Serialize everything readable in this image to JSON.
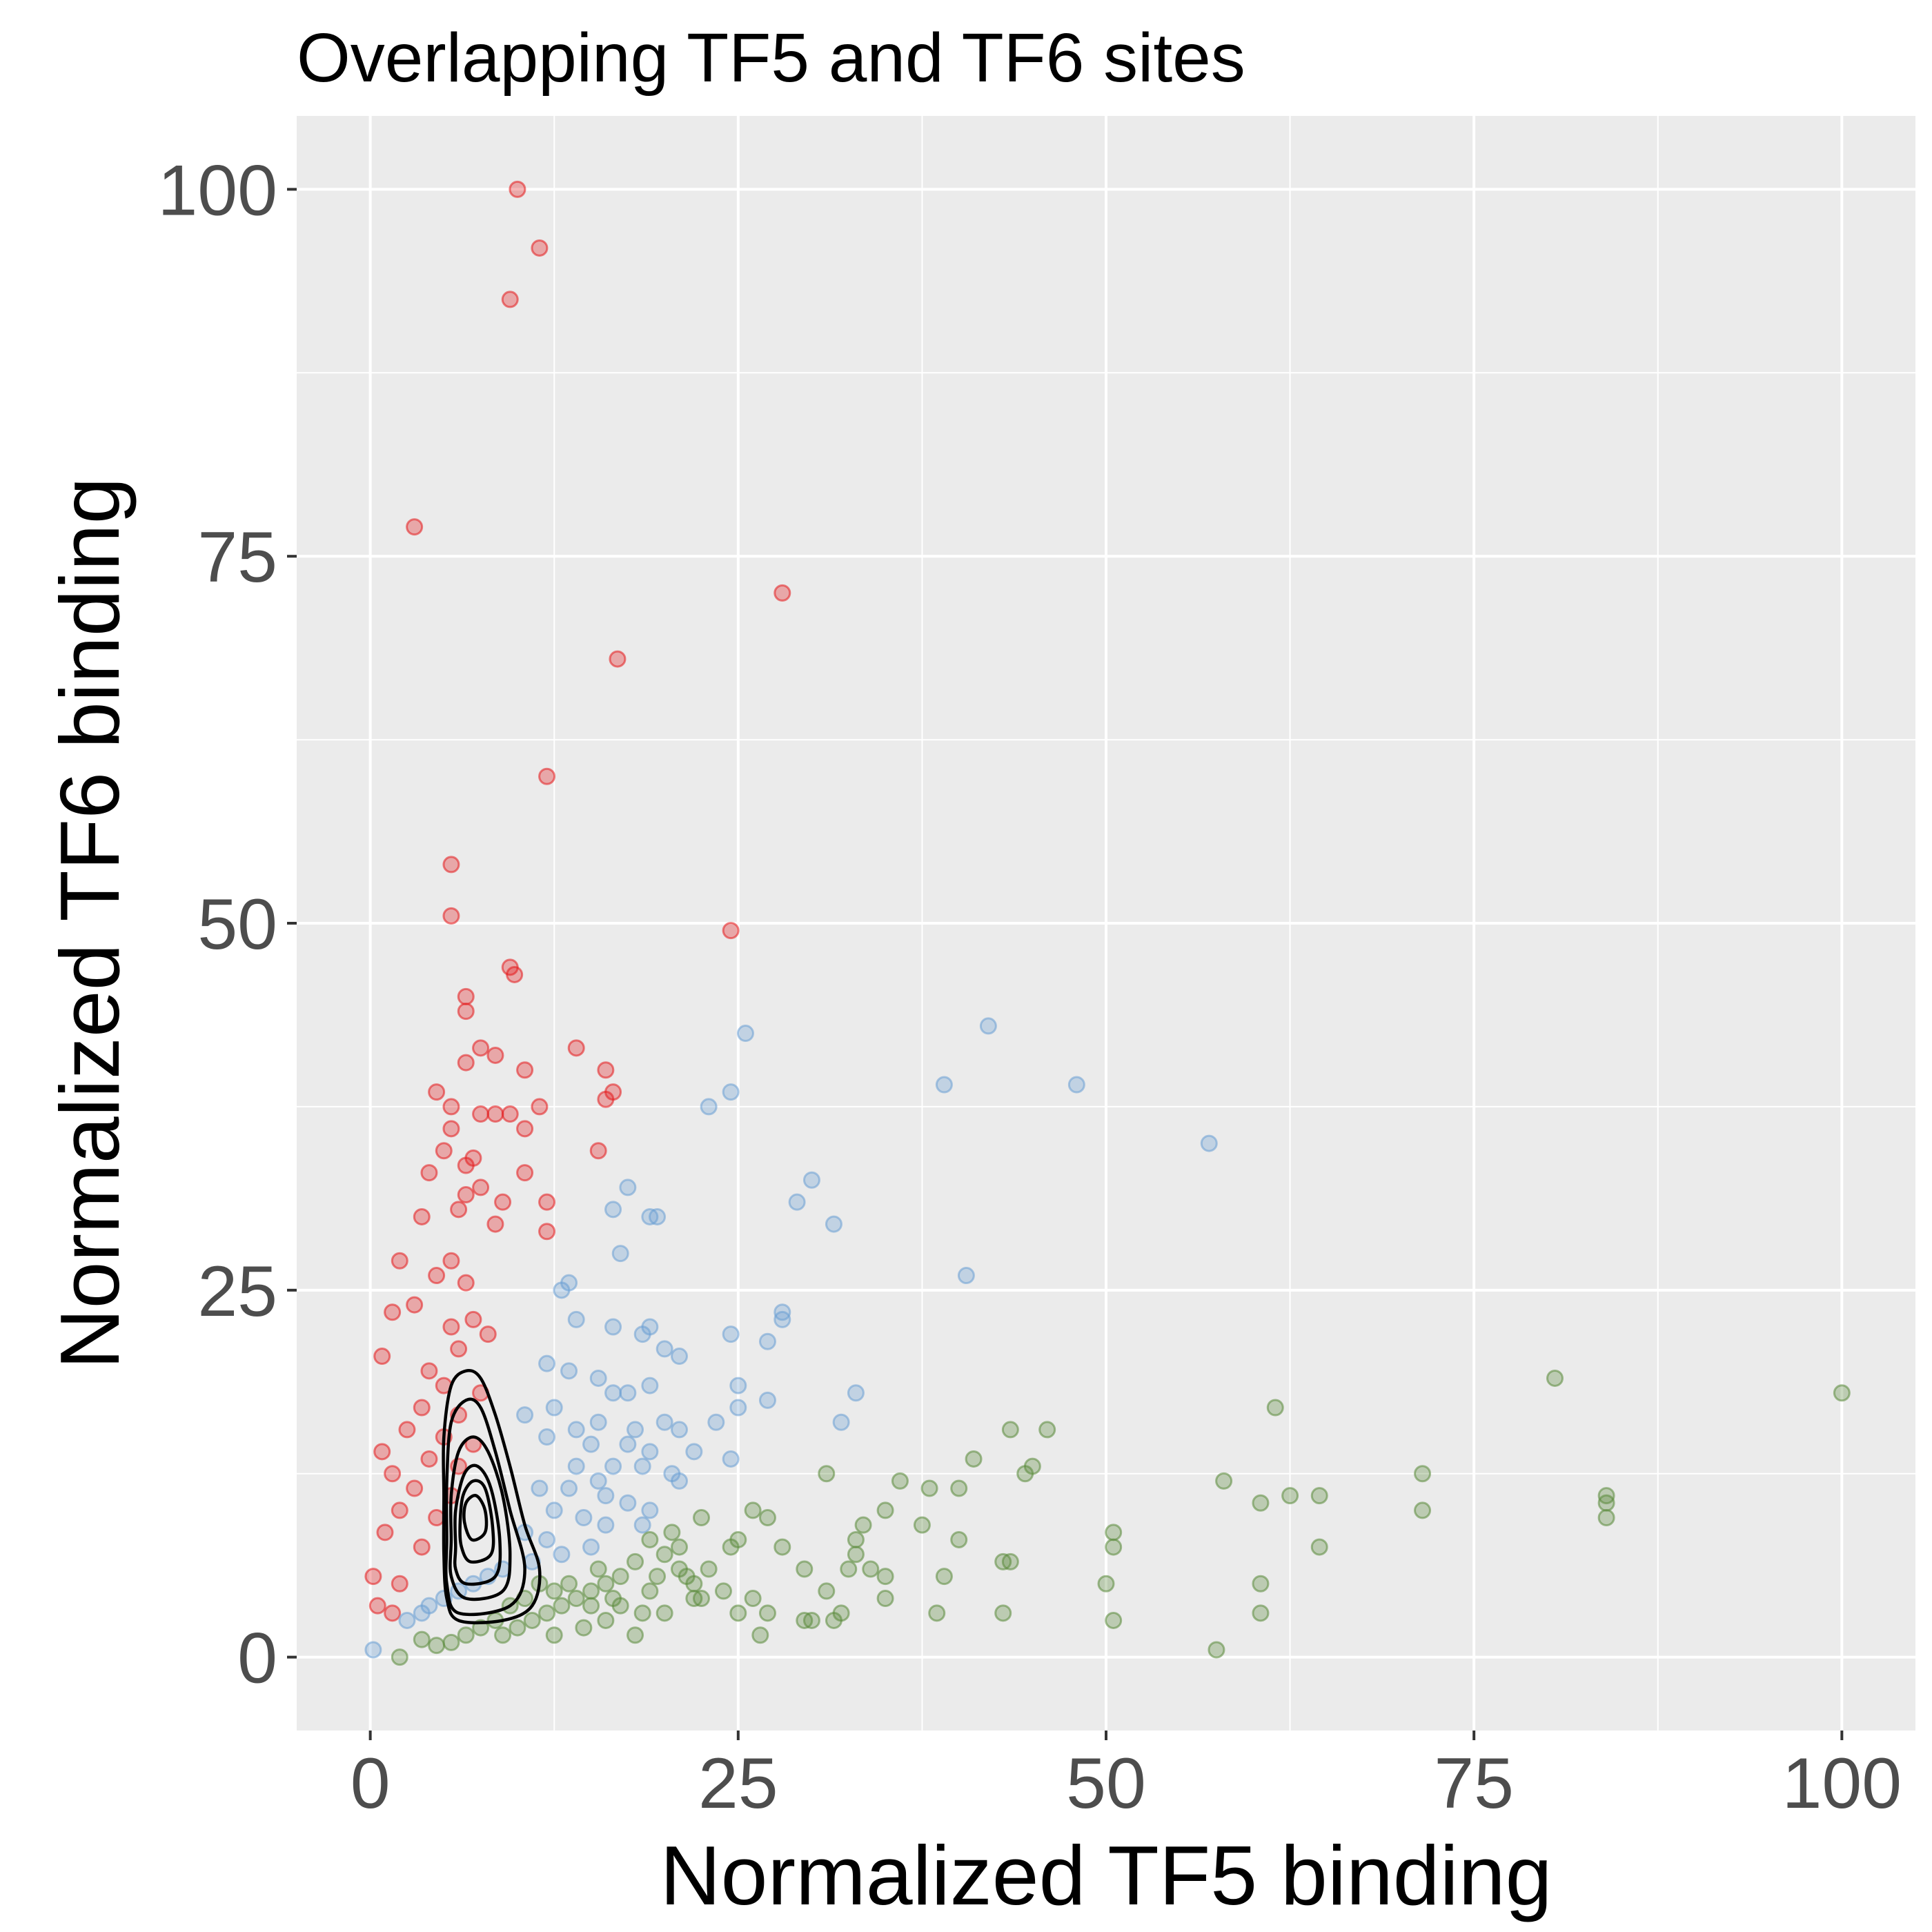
{
  "chart_data": {
    "type": "scatter",
    "title": "Overlapping TF5 and TF6 sites",
    "xlabel": "Normalized TF5 binding",
    "ylabel": "Normalized TF6 binding",
    "xlim": [
      -5,
      105
    ],
    "ylim": [
      -5,
      105
    ],
    "x_ticks": [
      "0",
      "25",
      "50",
      "75",
      "100"
    ],
    "y_ticks": [
      "0",
      "25",
      "50",
      "75",
      "100"
    ],
    "x_tick_values": [
      0,
      25,
      50,
      75,
      100
    ],
    "y_tick_values": [
      0,
      25,
      50,
      75,
      100
    ],
    "grid": true,
    "colors": {
      "panel": "#ebebeb",
      "grid": "#ffffff",
      "red": "#e41a1c",
      "blue": "#6a9fd4",
      "green": "#5a8a3a",
      "contour": "#000000"
    },
    "series": [
      {
        "color": "red",
        "points": [
          [
            10,
            100
          ],
          [
            11.5,
            96
          ],
          [
            9.5,
            92.5
          ],
          [
            3,
            77
          ],
          [
            28,
            72.5
          ],
          [
            16.8,
            68
          ],
          [
            12,
            60
          ],
          [
            5.5,
            54
          ],
          [
            5.5,
            50.5
          ],
          [
            24.5,
            49.5
          ],
          [
            9.5,
            47
          ],
          [
            9.8,
            46.5
          ],
          [
            6.5,
            45
          ],
          [
            6.5,
            44
          ],
          [
            14,
            41.5
          ],
          [
            7.5,
            41.5
          ],
          [
            8.5,
            41
          ],
          [
            6.5,
            40.5
          ],
          [
            10.5,
            40
          ],
          [
            16,
            40
          ],
          [
            16.5,
            38.5
          ],
          [
            4.5,
            38.5
          ],
          [
            16,
            38
          ],
          [
            11.5,
            37.5
          ],
          [
            5.5,
            37.5
          ],
          [
            8.5,
            37
          ],
          [
            9.5,
            37
          ],
          [
            7.5,
            37
          ],
          [
            10.5,
            36
          ],
          [
            5.5,
            36
          ],
          [
            15.5,
            34.5
          ],
          [
            5,
            34.5
          ],
          [
            7,
            34
          ],
          [
            6.5,
            33.5
          ],
          [
            4,
            33
          ],
          [
            10.5,
            33
          ],
          [
            7.5,
            32
          ],
          [
            6.5,
            31.5
          ],
          [
            12,
            31
          ],
          [
            9,
            31
          ],
          [
            6,
            30.5
          ],
          [
            3.5,
            30
          ],
          [
            8.5,
            29.5
          ],
          [
            12,
            29
          ],
          [
            2,
            27
          ],
          [
            5.5,
            27
          ],
          [
            4.5,
            26
          ],
          [
            6.5,
            25.5
          ],
          [
            3,
            24
          ],
          [
            1.5,
            23.5
          ],
          [
            7,
            23
          ],
          [
            5.5,
            22.5
          ],
          [
            8,
            22
          ],
          [
            6,
            21
          ],
          [
            0.8,
            20.5
          ],
          [
            4,
            19.5
          ],
          [
            5,
            18.5
          ],
          [
            7.5,
            18
          ],
          [
            3.5,
            17
          ],
          [
            6,
            16.5
          ],
          [
            2.5,
            15.5
          ],
          [
            5,
            15
          ],
          [
            7,
            14.5
          ],
          [
            0.8,
            14
          ],
          [
            4,
            13.5
          ],
          [
            6,
            13
          ],
          [
            1.5,
            12.5
          ],
          [
            3,
            11.5
          ],
          [
            5.5,
            11
          ],
          [
            2,
            10
          ],
          [
            4.5,
            9.5
          ],
          [
            1,
            8.5
          ],
          [
            3.5,
            7.5
          ],
          [
            0.2,
            5.5
          ],
          [
            2,
            5
          ],
          [
            0.5,
            3.5
          ],
          [
            1.5,
            3
          ]
        ]
      },
      {
        "color": "blue",
        "points": [
          [
            25.5,
            42.5
          ],
          [
            42,
            43
          ],
          [
            39,
            39
          ],
          [
            48,
            39
          ],
          [
            24.5,
            38.5
          ],
          [
            23,
            37.5
          ],
          [
            57,
            35
          ],
          [
            30,
            32.5
          ],
          [
            17.5,
            32
          ],
          [
            29,
            31
          ],
          [
            16.5,
            30.5
          ],
          [
            19,
            30
          ],
          [
            19.5,
            30
          ],
          [
            31.5,
            29.5
          ],
          [
            17,
            27.5
          ],
          [
            40.5,
            26
          ],
          [
            13.5,
            25.5
          ],
          [
            13,
            25
          ],
          [
            14,
            23
          ],
          [
            16.5,
            22.5
          ],
          [
            19,
            22.5
          ],
          [
            28,
            23.5
          ],
          [
            28,
            23
          ],
          [
            18.5,
            22
          ],
          [
            24.5,
            22
          ],
          [
            27,
            21.5
          ],
          [
            20,
            21
          ],
          [
            21,
            20.5
          ],
          [
            12,
            20
          ],
          [
            13.5,
            19.5
          ],
          [
            15.5,
            19
          ],
          [
            19,
            18.5
          ],
          [
            25,
            18.5
          ],
          [
            16.5,
            18
          ],
          [
            17.5,
            18
          ],
          [
            27,
            17.5
          ],
          [
            33,
            18
          ],
          [
            12.5,
            17
          ],
          [
            10.5,
            16.5
          ],
          [
            25,
            17
          ],
          [
            15.5,
            16
          ],
          [
            20,
            16
          ],
          [
            23.5,
            16
          ],
          [
            14,
            15.5
          ],
          [
            18,
            15.5
          ],
          [
            21,
            15.5
          ],
          [
            32,
            16
          ],
          [
            12,
            15
          ],
          [
            15,
            14.5
          ],
          [
            17.5,
            14.5
          ],
          [
            19,
            14
          ],
          [
            22,
            14
          ],
          [
            24.5,
            13.5
          ],
          [
            14,
            13
          ],
          [
            16.5,
            13
          ],
          [
            18.5,
            13
          ],
          [
            20.5,
            12.5
          ],
          [
            15.5,
            12
          ],
          [
            21,
            12
          ],
          [
            11.5,
            11.5
          ],
          [
            13.5,
            11.5
          ],
          [
            16,
            11
          ],
          [
            17.5,
            10.5
          ],
          [
            19,
            10
          ],
          [
            12.5,
            10
          ],
          [
            14.5,
            9.5
          ],
          [
            16,
            9
          ],
          [
            18.5,
            9
          ],
          [
            10.5,
            8.5
          ],
          [
            12,
            8
          ],
          [
            15,
            7.5
          ],
          [
            13,
            7
          ],
          [
            11,
            6.5
          ],
          [
            9,
            6
          ],
          [
            8,
            5.5
          ],
          [
            7,
            5
          ],
          [
            6,
            4.5
          ],
          [
            5,
            4
          ],
          [
            4,
            3.5
          ],
          [
            3.5,
            3
          ],
          [
            2.5,
            2.5
          ],
          [
            0.2,
            0.5
          ]
        ]
      },
      {
        "color": "green",
        "points": [
          [
            80.5,
            19
          ],
          [
            100,
            18
          ],
          [
            61.5,
            17
          ],
          [
            46,
            15.5
          ],
          [
            43.5,
            15.5
          ],
          [
            41,
            13.5
          ],
          [
            31,
            12.5
          ],
          [
            45,
            13
          ],
          [
            44.5,
            12.5
          ],
          [
            71.5,
            12.5
          ],
          [
            58,
            12
          ],
          [
            36,
            12
          ],
          [
            38,
            11.5
          ],
          [
            40,
            11.5
          ],
          [
            62.5,
            11
          ],
          [
            64.5,
            11
          ],
          [
            84,
            11
          ],
          [
            84,
            10.5
          ],
          [
            60.5,
            10.5
          ],
          [
            35,
            10
          ],
          [
            26,
            10
          ],
          [
            71.5,
            10
          ],
          [
            84,
            9.5
          ],
          [
            27,
            9.5
          ],
          [
            22.5,
            9.5
          ],
          [
            33.5,
            9
          ],
          [
            37.5,
            9
          ],
          [
            50.5,
            8.5
          ],
          [
            50.5,
            7.5
          ],
          [
            33,
            8
          ],
          [
            40,
            8
          ],
          [
            25,
            8
          ],
          [
            24.5,
            7.5
          ],
          [
            28,
            7.5
          ],
          [
            64.5,
            7.5
          ],
          [
            33,
            7
          ],
          [
            43.5,
            6.5
          ],
          [
            43,
            6.5
          ],
          [
            29.5,
            6
          ],
          [
            32.5,
            6
          ],
          [
            34,
            6
          ],
          [
            39,
            5.5
          ],
          [
            35,
            5.5
          ],
          [
            50,
            5
          ],
          [
            60.5,
            5
          ],
          [
            24,
            4.5
          ],
          [
            22.5,
            4
          ],
          [
            26,
            4
          ],
          [
            31,
            4.5
          ],
          [
            35,
            4
          ],
          [
            60.5,
            3
          ],
          [
            25,
            3
          ],
          [
            27,
            3
          ],
          [
            32,
            3
          ],
          [
            38.5,
            3
          ],
          [
            43,
            3
          ],
          [
            50.5,
            2.5
          ],
          [
            30,
            2.5
          ],
          [
            29.5,
            2.5
          ],
          [
            31.5,
            2.5
          ],
          [
            26.5,
            1.5
          ],
          [
            57.5,
            0.5
          ],
          [
            22,
            5
          ],
          [
            21,
            6
          ],
          [
            20,
            7
          ],
          [
            19,
            8
          ],
          [
            18,
            6.5
          ],
          [
            17,
            5.5
          ],
          [
            16,
            5
          ],
          [
            15,
            4.5
          ],
          [
            14,
            4
          ],
          [
            13,
            3.5
          ],
          [
            12,
            3
          ],
          [
            11,
            2.5
          ],
          [
            10,
            2
          ],
          [
            9,
            1.5
          ],
          [
            18,
            1.5
          ],
          [
            20,
            3
          ],
          [
            19,
            4.5
          ],
          [
            21,
            7.5
          ],
          [
            20.5,
            8.5
          ],
          [
            15.5,
            6
          ],
          [
            13.5,
            5
          ],
          [
            12.5,
            4.5
          ],
          [
            11.5,
            5
          ],
          [
            10.5,
            4
          ],
          [
            9.5,
            3.5
          ],
          [
            8.5,
            2.5
          ],
          [
            7.5,
            2
          ],
          [
            6.5,
            1.5
          ],
          [
            5.5,
            1
          ],
          [
            4.5,
            0.8
          ],
          [
            3.5,
            1.2
          ],
          [
            2,
            0
          ],
          [
            16,
            2.5
          ],
          [
            14.5,
            2
          ],
          [
            12.5,
            1.5
          ],
          [
            17,
            3.5
          ],
          [
            18.5,
            3
          ],
          [
            22,
            4
          ],
          [
            23,
            6
          ],
          [
            21.5,
            5.5
          ],
          [
            19.5,
            5.5
          ],
          [
            16.5,
            4
          ],
          [
            15,
            3.5
          ]
        ]
      }
    ],
    "contours": [
      [
        [
          6,
          2.5
        ],
        [
          9,
          2.5
        ],
        [
          11,
          3.5
        ],
        [
          11.5,
          6
        ],
        [
          10.5,
          9
        ],
        [
          9.5,
          13
        ],
        [
          8.5,
          16.5
        ],
        [
          7.5,
          19
        ],
        [
          6.5,
          19.5
        ],
        [
          5.5,
          18.5
        ],
        [
          5,
          15
        ],
        [
          5,
          11
        ],
        [
          5,
          7
        ],
        [
          5.2,
          4
        ],
        [
          6,
          2.5
        ]
      ],
      [
        [
          6,
          3
        ],
        [
          9.5,
          3.5
        ],
        [
          10.5,
          6
        ],
        [
          9.5,
          10
        ],
        [
          8.5,
          14
        ],
        [
          7.5,
          17
        ],
        [
          6.5,
          17.5
        ],
        [
          5.5,
          16
        ],
        [
          5.2,
          12
        ],
        [
          5.2,
          8
        ],
        [
          5.2,
          5
        ],
        [
          6,
          3
        ]
      ],
      [
        [
          6.5,
          4
        ],
        [
          9,
          4.5
        ],
        [
          9.5,
          7
        ],
        [
          9,
          11
        ],
        [
          8,
          14
        ],
        [
          7,
          15
        ],
        [
          6,
          14
        ],
        [
          5.5,
          11
        ],
        [
          5.5,
          8
        ],
        [
          5.5,
          5.5
        ],
        [
          6.5,
          4
        ]
      ],
      [
        [
          6.5,
          5
        ],
        [
          8.5,
          5.5
        ],
        [
          8.8,
          8
        ],
        [
          8.2,
          11.5
        ],
        [
          7.3,
          13
        ],
        [
          6.4,
          12.5
        ],
        [
          5.8,
          10
        ],
        [
          5.8,
          7.5
        ],
        [
          5.8,
          6
        ],
        [
          6.5,
          5
        ]
      ],
      [
        [
          6.8,
          6.5
        ],
        [
          8.2,
          7
        ],
        [
          8.3,
          9
        ],
        [
          7.8,
          11.5
        ],
        [
          7,
          12
        ],
        [
          6.3,
          11
        ],
        [
          6.1,
          9
        ],
        [
          6.2,
          7.5
        ],
        [
          6.8,
          6.5
        ]
      ],
      [
        [
          6.9,
          8
        ],
        [
          7.8,
          8.5
        ],
        [
          7.8,
          10
        ],
        [
          7.2,
          11
        ],
        [
          6.5,
          10.5
        ],
        [
          6.4,
          9.2
        ],
        [
          6.9,
          8
        ]
      ]
    ]
  }
}
